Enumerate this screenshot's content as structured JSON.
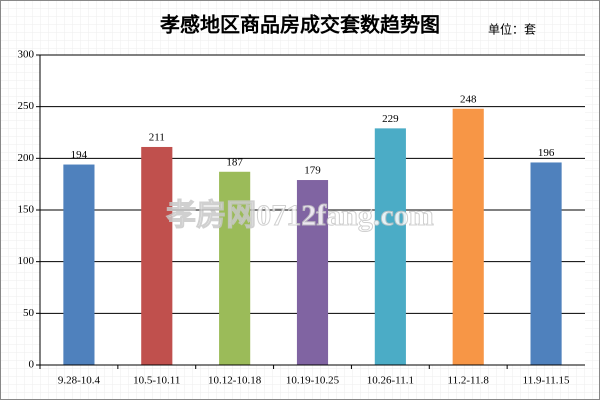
{
  "chart_data": {
    "type": "bar",
    "title": "孝感地区商品房成交套数趋势图",
    "subtitle": "单位：套",
    "watermark": "孝房网0712fang.com",
    "categories": [
      "9.28-10.4",
      "10.5-10.11",
      "10.12-10.18",
      "10.19-10.25",
      "10.26-11.1",
      "11.2-11.8",
      "11.9-11.15"
    ],
    "values": [
      194,
      211,
      187,
      179,
      229,
      248,
      196
    ],
    "colors": [
      "#4f81bd",
      "#c0504d",
      "#9bbb59",
      "#8064a2",
      "#4bacc6",
      "#f79646",
      "#4f81bd"
    ],
    "ylim": [
      0,
      300
    ],
    "yticks": [
      0,
      50,
      100,
      150,
      200,
      250,
      300
    ],
    "grid": true
  }
}
